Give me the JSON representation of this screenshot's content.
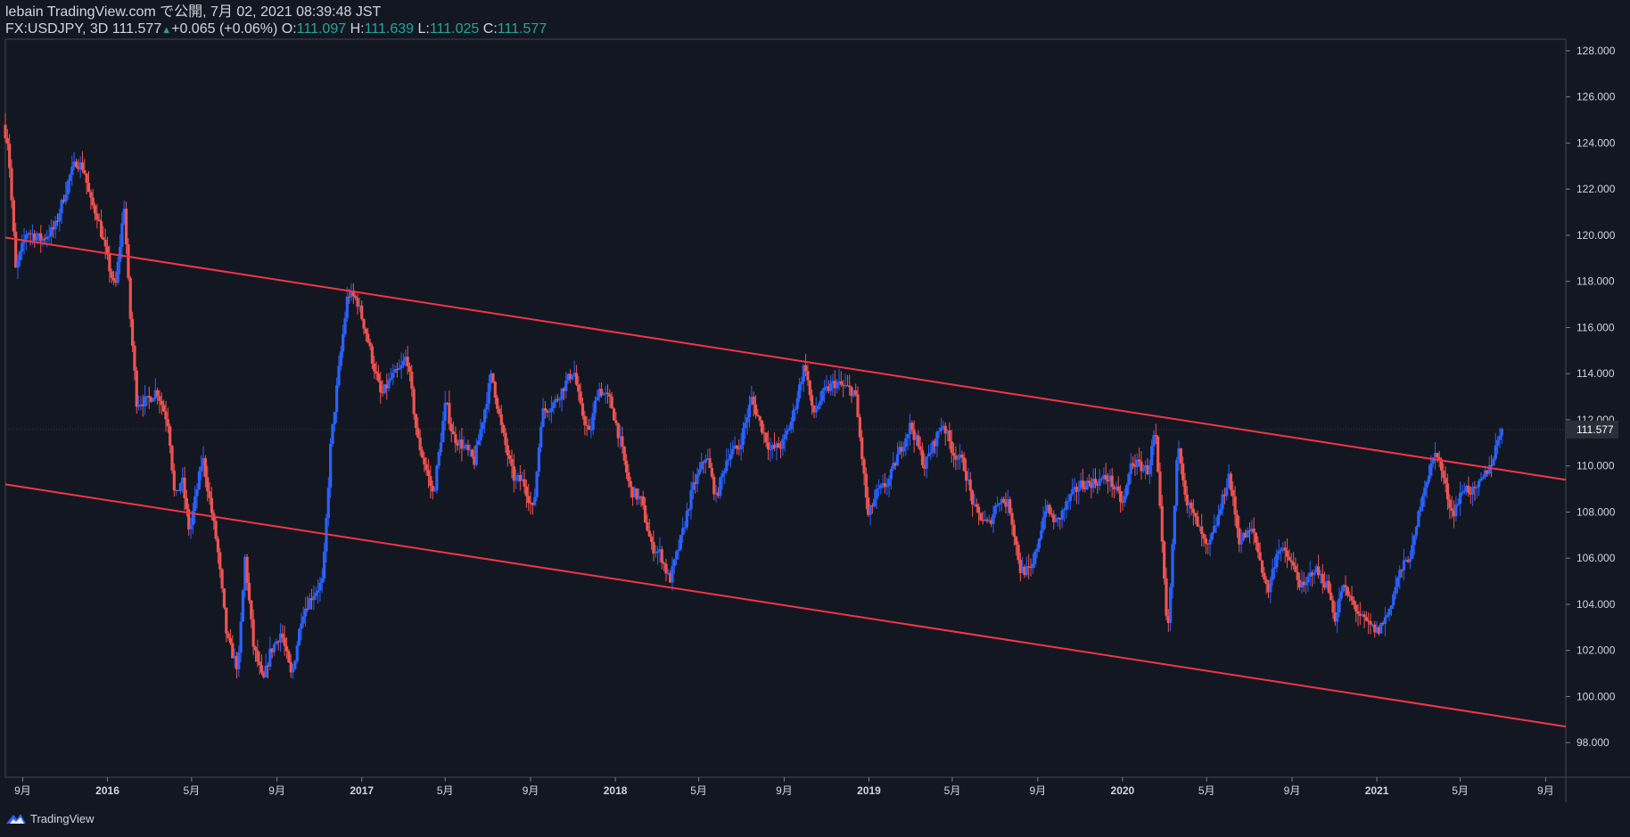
{
  "header": {
    "published": "lebain TradingView.com で公開, 7月 02, 2021 08:39:48 JST",
    "symbol": "FX:USDJPY, 3D",
    "last": "111.577",
    "change": "+0.065 (+0.06%)",
    "o_label": "O:",
    "o_value": "111.097",
    "h_label": "H:",
    "h_value": "111.639",
    "l_label": "L:",
    "l_value": "111.025",
    "c_label": "C:",
    "c_value": "111.577"
  },
  "footer": {
    "brand": "TradingView"
  },
  "colors": {
    "background": "#131722",
    "up": "#2962ff",
    "down": "#ef5350",
    "trendline": "#f23645",
    "axis_text": "#d1d4dc",
    "teal": "#26a69a"
  },
  "icons": {
    "logo": "tradingview-logo-icon",
    "arrow": "triangle-up-icon"
  },
  "chart_data": {
    "type": "candlestick",
    "symbol": "FX:USDJPY",
    "interval": "3D",
    "ylim": [
      96.5,
      128.5
    ],
    "y_ticks": [
      "128.000",
      "126.000",
      "124.000",
      "122.000",
      "120.000",
      "118.000",
      "116.000",
      "114.000",
      "112.000",
      "110.000",
      "108.000",
      "106.000",
      "104.000",
      "102.000",
      "100.000",
      "98.000"
    ],
    "x_ticks": [
      {
        "date": "2015-09-01",
        "label": "9月"
      },
      {
        "date": "2016-01-01",
        "label": "2016"
      },
      {
        "date": "2016-05-01",
        "label": "5月"
      },
      {
        "date": "2016-09-01",
        "label": "9月"
      },
      {
        "date": "2017-01-01",
        "label": "2017"
      },
      {
        "date": "2017-05-01",
        "label": "5月"
      },
      {
        "date": "2017-09-01",
        "label": "9月"
      },
      {
        "date": "2018-01-01",
        "label": "2018"
      },
      {
        "date": "2018-05-01",
        "label": "5月"
      },
      {
        "date": "2018-09-01",
        "label": "9月"
      },
      {
        "date": "2019-01-01",
        "label": "2019"
      },
      {
        "date": "2019-05-01",
        "label": "5月"
      },
      {
        "date": "2019-09-01",
        "label": "9月"
      },
      {
        "date": "2020-01-01",
        "label": "2020"
      },
      {
        "date": "2020-05-01",
        "label": "5月"
      },
      {
        "date": "2020-09-01",
        "label": "9月"
      },
      {
        "date": "2021-01-01",
        "label": "2021"
      },
      {
        "date": "2021-05-01",
        "label": "5月"
      },
      {
        "date": "2021-09-01",
        "label": "9月"
      }
    ],
    "x_range": [
      "2015-08-07",
      "2021-09-30"
    ],
    "last_price": "111.577",
    "last_price_value": 111.577,
    "trendlines": [
      {
        "name": "upper-channel",
        "from": {
          "date": "2015-08-07",
          "value": 119.9
        },
        "to": {
          "date": "2021-09-30",
          "value": 109.4
        }
      },
      {
        "name": "lower-channel",
        "from": {
          "date": "2015-08-07",
          "value": 109.2
        },
        "to": {
          "date": "2021-09-30",
          "value": 98.7
        }
      }
    ],
    "price_path": [
      [
        "2015-08-07",
        124.8
      ],
      [
        "2015-08-14",
        124.0
      ],
      [
        "2015-08-25",
        118.5
      ],
      [
        "2015-09-10",
        120.2
      ],
      [
        "2015-10-01",
        119.8
      ],
      [
        "2015-10-20",
        120.3
      ],
      [
        "2015-11-10",
        122.5
      ],
      [
        "2015-11-20",
        123.2
      ],
      [
        "2015-12-01",
        122.9
      ],
      [
        "2015-12-10",
        121.5
      ],
      [
        "2015-12-20",
        120.9
      ],
      [
        "2016-01-05",
        118.8
      ],
      [
        "2016-01-15",
        117.6
      ],
      [
        "2016-01-28",
        121.3
      ],
      [
        "2016-02-05",
        116.8
      ],
      [
        "2016-02-15",
        112.8
      ],
      [
        "2016-03-01",
        112.8
      ],
      [
        "2016-03-15",
        113.3
      ],
      [
        "2016-04-01",
        111.8
      ],
      [
        "2016-04-10",
        108.5
      ],
      [
        "2016-04-20",
        109.5
      ],
      [
        "2016-05-01",
        107.1
      ],
      [
        "2016-05-20",
        110.4
      ],
      [
        "2016-06-10",
        106.5
      ],
      [
        "2016-06-24",
        102.5
      ],
      [
        "2016-07-10",
        101.2
      ],
      [
        "2016-07-20",
        106.0
      ],
      [
        "2016-08-01",
        102.2
      ],
      [
        "2016-08-15",
        100.6
      ],
      [
        "2016-08-25",
        101.9
      ],
      [
        "2016-09-10",
        102.8
      ],
      [
        "2016-09-25",
        100.8
      ],
      [
        "2016-10-10",
        103.6
      ],
      [
        "2016-10-25",
        104.4
      ],
      [
        "2016-11-09",
        105.0
      ],
      [
        "2016-11-20",
        110.8
      ],
      [
        "2016-12-01",
        113.9
      ],
      [
        "2016-12-15",
        117.5
      ],
      [
        "2016-12-28",
        117.2
      ],
      [
        "2017-01-10",
        115.8
      ],
      [
        "2017-01-20",
        114.5
      ],
      [
        "2017-02-01",
        113.0
      ],
      [
        "2017-02-15",
        113.8
      ],
      [
        "2017-03-01",
        114.2
      ],
      [
        "2017-03-10",
        114.8
      ],
      [
        "2017-03-25",
        111.2
      ],
      [
        "2017-04-10",
        109.5
      ],
      [
        "2017-04-17",
        108.7
      ],
      [
        "2017-05-05",
        112.8
      ],
      [
        "2017-05-15",
        111.3
      ],
      [
        "2017-06-01",
        110.8
      ],
      [
        "2017-06-15",
        110.2
      ],
      [
        "2017-07-10",
        114.0
      ],
      [
        "2017-07-25",
        111.5
      ],
      [
        "2017-08-10",
        109.5
      ],
      [
        "2017-08-25",
        109.3
      ],
      [
        "2017-09-08",
        108.0
      ],
      [
        "2017-09-20",
        112.3
      ],
      [
        "2017-10-10",
        112.8
      ],
      [
        "2017-11-05",
        114.2
      ],
      [
        "2017-11-15",
        112.5
      ],
      [
        "2017-11-28",
        111.3
      ],
      [
        "2017-12-10",
        113.4
      ],
      [
        "2017-12-28",
        112.8
      ],
      [
        "2018-01-10",
        111.2
      ],
      [
        "2018-01-25",
        109.0
      ],
      [
        "2018-02-10",
        108.5
      ],
      [
        "2018-02-25",
        106.5
      ],
      [
        "2018-03-10",
        106.2
      ],
      [
        "2018-03-23",
        105.0
      ],
      [
        "2018-04-10",
        107.0
      ],
      [
        "2018-04-25",
        109.0
      ],
      [
        "2018-05-15",
        110.5
      ],
      [
        "2018-05-29",
        108.6
      ],
      [
        "2018-06-15",
        110.5
      ],
      [
        "2018-07-01",
        110.8
      ],
      [
        "2018-07-19",
        112.9
      ],
      [
        "2018-08-01",
        111.8
      ],
      [
        "2018-08-15",
        110.7
      ],
      [
        "2018-09-01",
        110.9
      ],
      [
        "2018-09-15",
        112.0
      ],
      [
        "2018-10-04",
        114.5
      ],
      [
        "2018-10-15",
        112.2
      ],
      [
        "2018-11-01",
        113.2
      ],
      [
        "2018-11-15",
        113.6
      ],
      [
        "2018-12-01",
        113.4
      ],
      [
        "2018-12-15",
        113.2
      ],
      [
        "2019-01-03",
        107.8
      ],
      [
        "2019-01-15",
        108.8
      ],
      [
        "2019-02-01",
        109.3
      ],
      [
        "2019-02-15",
        110.5
      ],
      [
        "2019-03-05",
        111.8
      ],
      [
        "2019-03-25",
        110.0
      ],
      [
        "2019-04-20",
        111.9
      ],
      [
        "2019-05-05",
        110.6
      ],
      [
        "2019-05-20",
        110.1
      ],
      [
        "2019-06-05",
        108.1
      ],
      [
        "2019-06-25",
        107.4
      ],
      [
        "2019-07-10",
        108.6
      ],
      [
        "2019-07-25",
        108.3
      ],
      [
        "2019-08-10",
        105.5
      ],
      [
        "2019-08-26",
        105.4
      ],
      [
        "2019-09-15",
        108.2
      ],
      [
        "2019-10-01",
        107.5
      ],
      [
        "2019-10-20",
        108.6
      ],
      [
        "2019-11-05",
        109.2
      ],
      [
        "2019-11-25",
        109.3
      ],
      [
        "2019-12-15",
        109.5
      ],
      [
        "2020-01-05",
        108.3
      ],
      [
        "2020-01-17",
        110.2
      ],
      [
        "2020-02-10",
        109.8
      ],
      [
        "2020-02-20",
        111.6
      ],
      [
        "2020-03-09",
        102.4
      ],
      [
        "2020-03-24",
        111.2
      ],
      [
        "2020-04-05",
        108.5
      ],
      [
        "2020-04-20",
        107.5
      ],
      [
        "2020-05-05",
        106.3
      ],
      [
        "2020-05-20",
        107.7
      ],
      [
        "2020-06-05",
        109.6
      ],
      [
        "2020-06-20",
        106.8
      ],
      [
        "2020-07-10",
        107.2
      ],
      [
        "2020-07-31",
        104.5
      ],
      [
        "2020-08-15",
        106.5
      ],
      [
        "2020-09-01",
        105.9
      ],
      [
        "2020-09-20",
        104.6
      ],
      [
        "2020-10-05",
        105.6
      ],
      [
        "2020-10-25",
        104.8
      ],
      [
        "2020-11-06",
        103.3
      ],
      [
        "2020-11-15",
        104.8
      ],
      [
        "2020-12-01",
        104.0
      ],
      [
        "2020-12-15",
        103.3
      ],
      [
        "2021-01-05",
        102.8
      ],
      [
        "2021-01-20",
        103.6
      ],
      [
        "2021-02-05",
        105.3
      ],
      [
        "2021-02-25",
        106.4
      ],
      [
        "2021-03-10",
        108.8
      ],
      [
        "2021-03-31",
        110.7
      ],
      [
        "2021-04-15",
        108.8
      ],
      [
        "2021-04-23",
        107.9
      ],
      [
        "2021-05-10",
        109.1
      ],
      [
        "2021-05-25",
        108.8
      ],
      [
        "2021-06-10",
        109.7
      ],
      [
        "2021-06-20",
        110.3
      ],
      [
        "2021-07-01",
        111.6
      ]
    ]
  }
}
